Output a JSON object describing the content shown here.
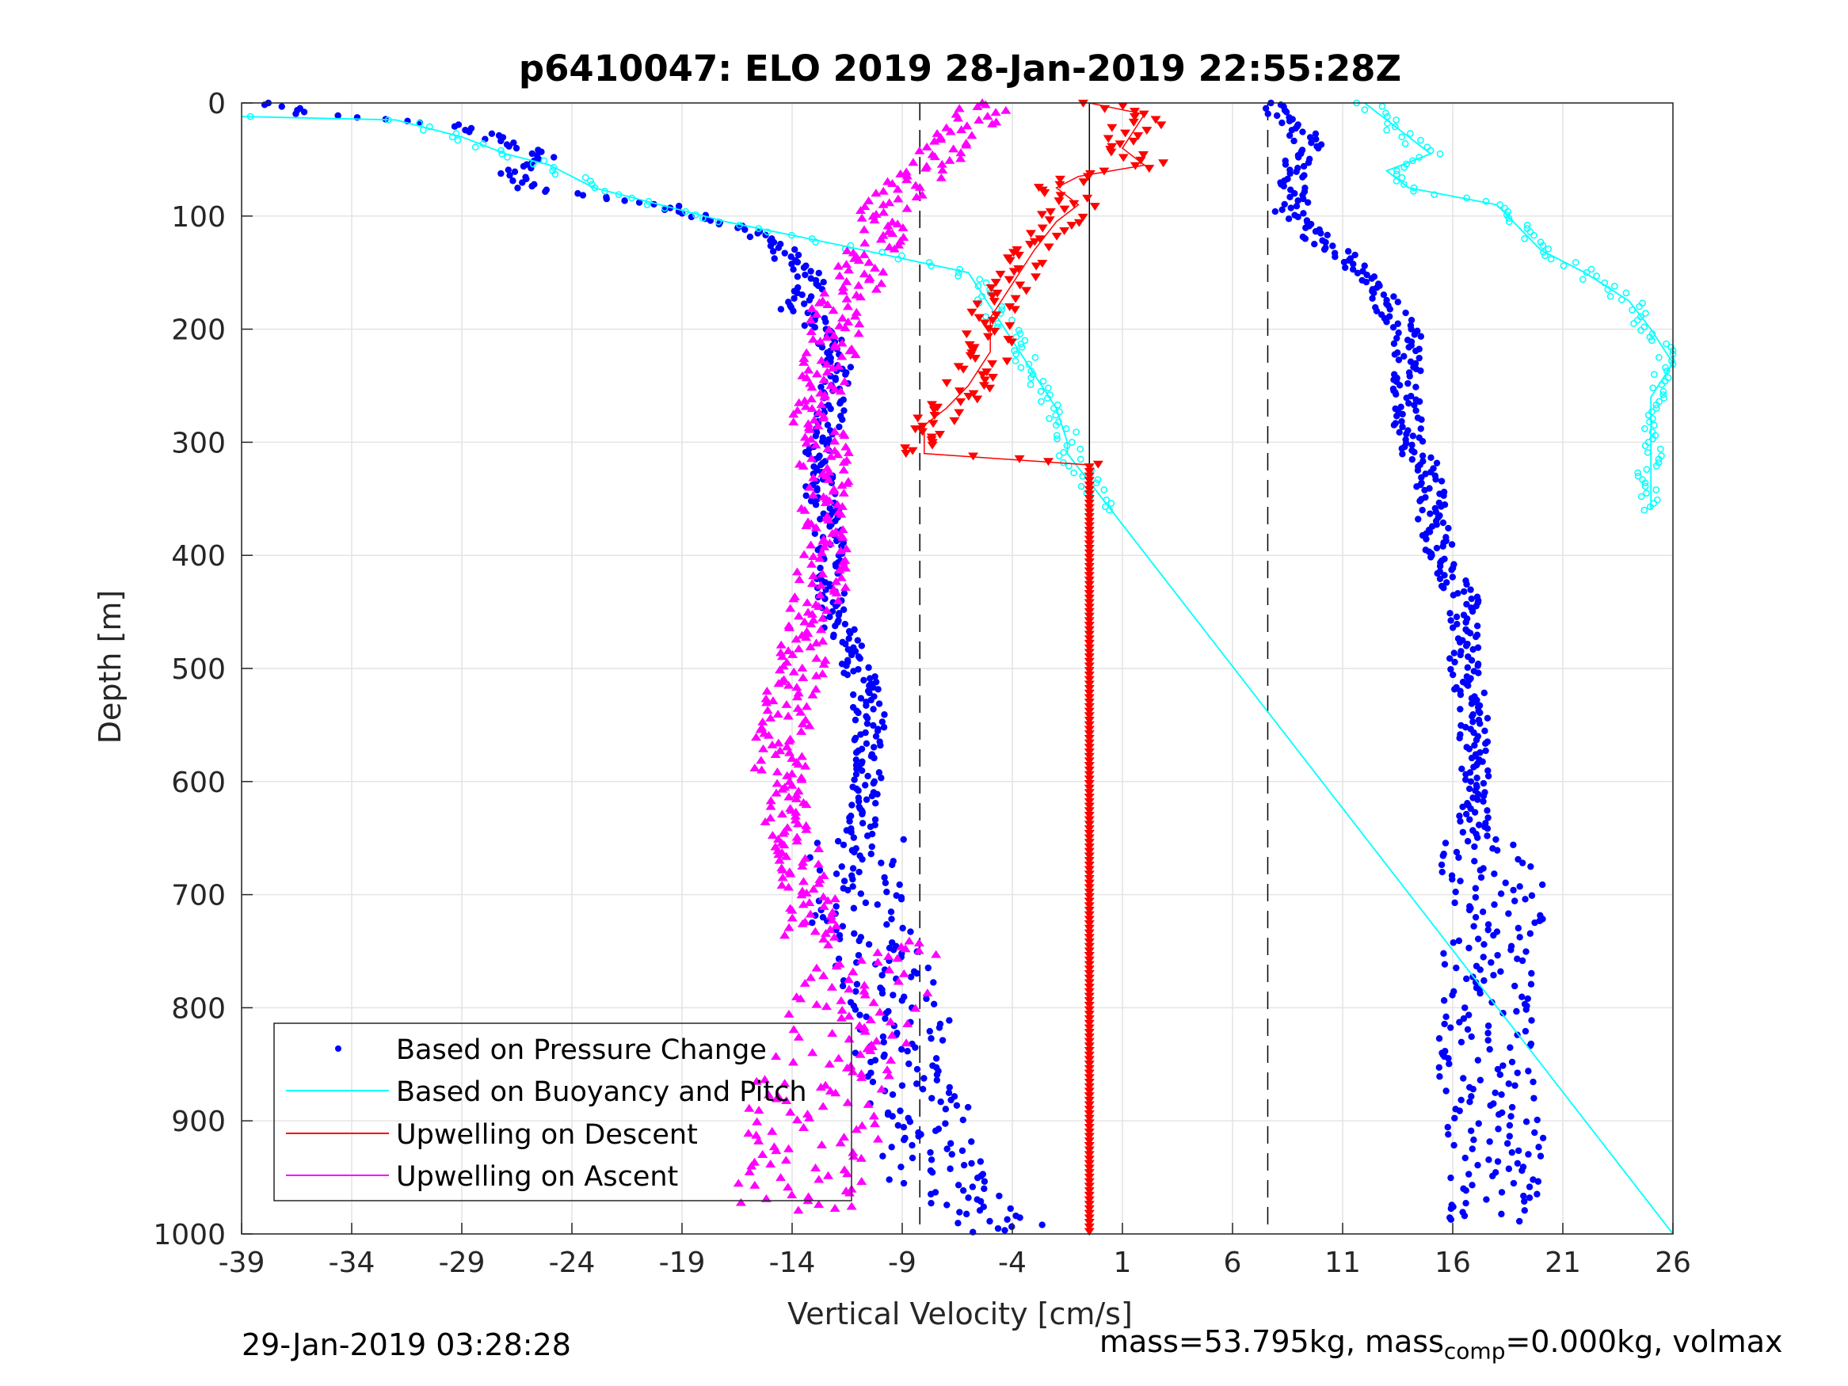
{
  "chart_data": {
    "type": "scatter",
    "title": "p6410047: ELO 2019 28-Jan-2019 22:55:28Z",
    "xlabel": "Vertical Velocity [cm/s]",
    "ylabel": "Depth [m]",
    "xlim": [
      -39,
      26
    ],
    "ylim": [
      0,
      1000
    ],
    "y_reversed": true,
    "xticks": [
      -39,
      -34,
      -29,
      -24,
      -19,
      -14,
      -9,
      -4,
      1,
      6,
      11,
      16,
      21,
      26
    ],
    "yticks": [
      0,
      100,
      200,
      300,
      400,
      500,
      600,
      700,
      800,
      900,
      1000
    ],
    "grid": true,
    "legend_position": "bottom-left",
    "reference_lines": {
      "dashed_x": [
        -8.2,
        7.6
      ],
      "solid_x": [
        -0.5
      ]
    },
    "series": [
      {
        "name": "Based on Pressure Change",
        "color": "#0000ff",
        "marker": "dot",
        "profiles": [
          {
            "part": "descent",
            "depth": [
              0,
              10,
              20,
              35,
              50,
              60,
              75,
              90,
              100,
              120,
              140,
              160,
              180,
              200,
              230,
              260,
              290,
              320,
              350,
              380,
              420,
              460,
              500,
              540,
              580,
              620,
              650,
              690,
              720,
              760,
              800,
              850,
              900,
              950,
              980,
              1000
            ],
            "velocity": [
              -38,
              -36,
              -29,
              -27,
              -25,
              -27,
              -26,
              -20,
              -18,
              -15,
              -14,
              -13,
              -14,
              -12.5,
              -12,
              -12,
              -12.6,
              -12.8,
              -12.7,
              -12.3,
              -12.3,
              -12,
              -11,
              -10.5,
              -10.5,
              -10.6,
              -11,
              -11.2,
              -11,
              -10,
              -9,
              -9,
              -8,
              -7.5,
              -6,
              -4
            ]
          },
          {
            "part": "ascent",
            "depth": [
              0,
              20,
              40,
              60,
              80,
              100,
              120,
              140,
              160,
              180,
              200,
              240,
              270,
              300,
              330,
              360,
              400,
              440,
              480,
              500,
              540,
              580,
              620,
              650,
              690,
              720,
              760,
              800,
              850,
              900,
              950,
              990
            ],
            "velocity": [
              7.5,
              9,
              9.5,
              8.5,
              9,
              8.5,
              10,
              11.5,
              12.5,
              13,
              14,
              14,
              14,
              14,
              15,
              15,
              15.5,
              16.5,
              16.5,
              16.5,
              17,
              17,
              17,
              17,
              18,
              18,
              17.5,
              17.5,
              17.5,
              18,
              18,
              18
            ]
          }
        ]
      },
      {
        "name": "Based on Buoyancy and Pitch",
        "color": "#00ffff",
        "marker": "line-circle",
        "profiles": [
          {
            "part": "descent",
            "depth": [
              12,
              15,
              30,
              45,
              55,
              75,
              90,
              105,
              125,
              150,
              180,
              210,
              240,
              270,
              300,
              310,
              1000
            ],
            "velocity": [
              -39,
              -32,
              -29,
              -27,
              -25,
              -23,
              -20,
              -17,
              -12,
              -6,
              -5,
              -4,
              -3,
              -2,
              -1.5,
              -1.5,
              26
            ]
          },
          {
            "part": "ascent",
            "depth": [
              0,
              15,
              30,
              45,
              60,
              75,
              90,
              110,
              130,
              150,
              175,
              200,
              230,
              260,
              300,
              360
            ],
            "velocity": [
              12,
              13,
              14,
              15,
              13,
              14,
              18,
              19,
              20,
              22,
              24,
              25,
              26,
              25,
              25,
              25
            ]
          }
        ]
      },
      {
        "name": "Upwelling on Descent",
        "color": "#ff0000",
        "marker": "triangle-down",
        "profile": {
          "depth": [
            0,
            10,
            25,
            40,
            55,
            65,
            75,
            90,
            105,
            130,
            160,
            190,
            220,
            250,
            270,
            285,
            300,
            310,
            320,
            1000
          ],
          "velocity": [
            -0.5,
            2,
            1.5,
            1,
            2,
            -1,
            -2,
            -1,
            -2,
            -3,
            -4,
            -5,
            -5,
            -6,
            -7,
            -8,
            -8,
            -8,
            -0.5,
            -0.5
          ]
        }
      },
      {
        "name": "Upwelling on Ascent",
        "color": "#ff00ff",
        "marker": "triangle-up",
        "profile": {
          "depth": [
            0,
            20,
            40,
            60,
            80,
            100,
            120,
            140,
            160,
            180,
            200,
            240,
            280,
            320,
            360,
            400,
            440,
            480,
            520,
            560,
            600,
            640,
            680,
            720,
            760,
            800,
            840,
            880,
            920,
            960,
            980
          ],
          "velocity": [
            -5,
            -6,
            -7,
            -8,
            -9,
            -10,
            -10,
            -11,
            -11,
            -12,
            -12,
            -12.5,
            -12.8,
            -12.5,
            -12.5,
            -12.5,
            -12.8,
            -13.5,
            -14,
            -14.5,
            -14.5,
            -14,
            -13.5,
            -13,
            -13.5,
            -14,
            -15,
            -16,
            -16,
            -17,
            -17
          ]
        }
      }
    ]
  },
  "footer": {
    "left": "29-Jan-2019 03:28:28",
    "right_prefix": "mass=53.795kg, mass",
    "right_sub": "comp",
    "right_suffix": "=0.000kg, volmax"
  }
}
